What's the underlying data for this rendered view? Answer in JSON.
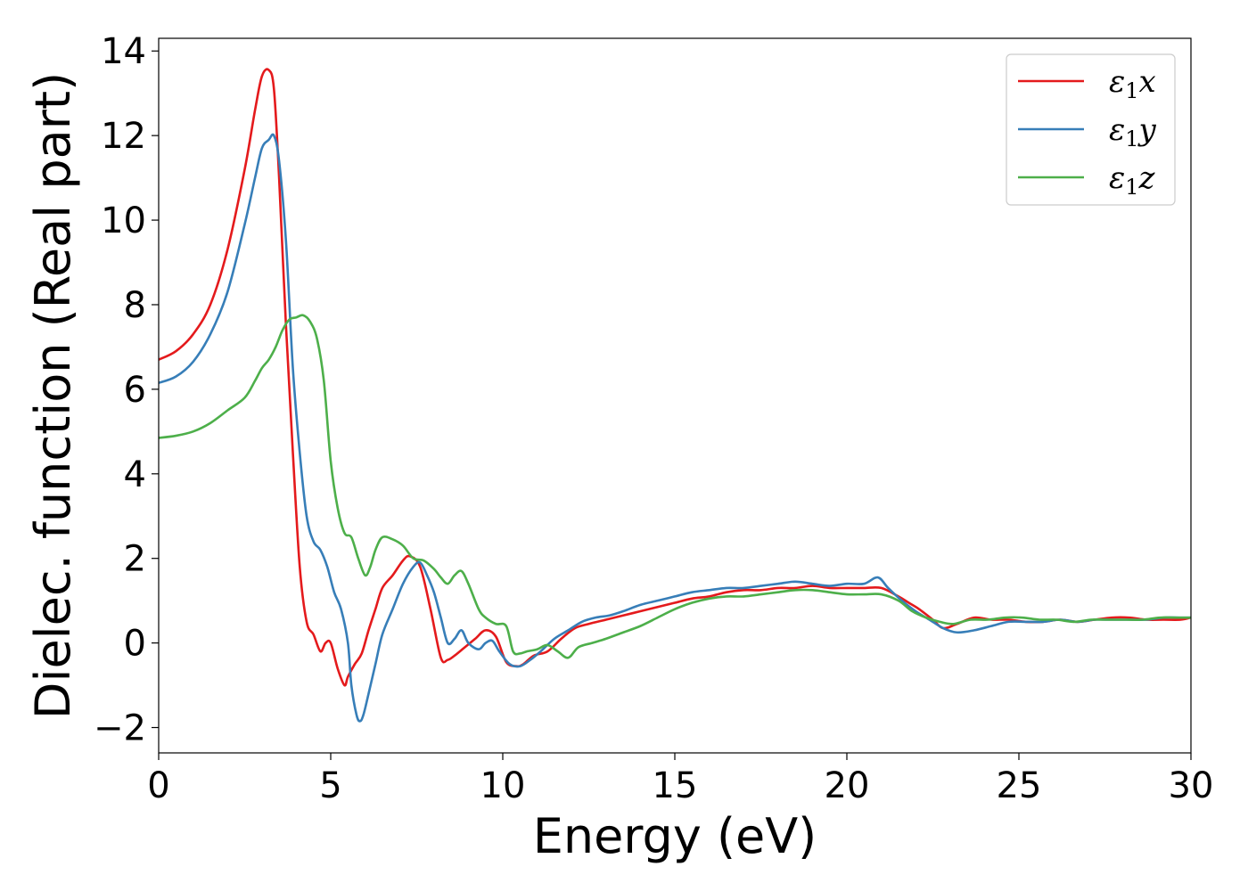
{
  "chart_data": {
    "type": "line",
    "xlabel": "Energy (eV)",
    "ylabel": "Dielec. function (Real part)",
    "xlim": [
      0,
      30
    ],
    "ylim": [
      -2.6,
      14.3
    ],
    "xticks": [
      0,
      5,
      10,
      15,
      20,
      25,
      30
    ],
    "yticks": [
      -2,
      0,
      2,
      4,
      6,
      8,
      10,
      12,
      14
    ],
    "xtick_labels": [
      "0",
      "5",
      "10",
      "15",
      "20",
      "25",
      "30"
    ],
    "ytick_labels": [
      "−2",
      "0",
      "2",
      "4",
      "6",
      "8",
      "10",
      "12",
      "14"
    ],
    "grid": false,
    "legend_position": "top-right",
    "series": [
      {
        "name": "ε1x",
        "legend": {
          "symbol": "ε",
          "sub": "1",
          "var": "x"
        },
        "color": "#e41a1c",
        "x": [
          0,
          0.5,
          1,
          1.5,
          2,
          2.5,
          2.8,
          3.0,
          3.2,
          3.35,
          3.5,
          3.7,
          3.9,
          4.1,
          4.3,
          4.5,
          4.7,
          4.85,
          5.0,
          5.2,
          5.4,
          5.5,
          5.7,
          5.9,
          6.1,
          6.3,
          6.5,
          6.8,
          7.1,
          7.3,
          7.6,
          7.9,
          8.2,
          8.4,
          8.6,
          8.9,
          9.2,
          9.5,
          9.8,
          10.1,
          10.4,
          10.6,
          10.9,
          11.3,
          11.7,
          12.1,
          12.5,
          13.0,
          13.5,
          14.0,
          14.5,
          15.0,
          15.5,
          16.0,
          16.5,
          17.0,
          17.5,
          18.0,
          18.5,
          19.0,
          19.5,
          20.0,
          20.5,
          21.0,
          21.5,
          21.8,
          22.1,
          22.5,
          22.8,
          23.2,
          23.7,
          24.2,
          24.7,
          25.2,
          25.7,
          26.2,
          26.7,
          27.2,
          27.7,
          28.2,
          28.7,
          29.2,
          29.7,
          30.0
        ],
        "values": [
          6.7,
          6.9,
          7.3,
          8.0,
          9.3,
          11.2,
          12.6,
          13.4,
          13.55,
          13.1,
          11.0,
          7.5,
          4.5,
          1.8,
          0.5,
          0.2,
          -0.2,
          0.0,
          0.0,
          -0.6,
          -1.0,
          -0.8,
          -0.5,
          -0.25,
          0.3,
          0.8,
          1.3,
          1.6,
          1.95,
          2.05,
          1.8,
          0.8,
          -0.35,
          -0.4,
          -0.3,
          -0.1,
          0.1,
          0.3,
          0.15,
          -0.45,
          -0.55,
          -0.5,
          -0.3,
          -0.2,
          0.1,
          0.35,
          0.45,
          0.55,
          0.65,
          0.75,
          0.85,
          0.95,
          1.05,
          1.1,
          1.2,
          1.25,
          1.25,
          1.3,
          1.3,
          1.35,
          1.3,
          1.3,
          1.3,
          1.3,
          1.1,
          0.95,
          0.8,
          0.55,
          0.35,
          0.45,
          0.6,
          0.55,
          0.55,
          0.5,
          0.5,
          0.55,
          0.5,
          0.55,
          0.6,
          0.6,
          0.55,
          0.55,
          0.55,
          0.6
        ]
      },
      {
        "name": "ε1y",
        "legend": {
          "symbol": "ε",
          "sub": "1",
          "var": "y"
        },
        "color": "#377eb8",
        "x": [
          0,
          0.5,
          1,
          1.5,
          2,
          2.5,
          2.8,
          3.0,
          3.2,
          3.35,
          3.5,
          3.7,
          3.9,
          4.1,
          4.3,
          4.5,
          4.7,
          4.9,
          5.1,
          5.3,
          5.5,
          5.6,
          5.75,
          5.85,
          5.95,
          6.1,
          6.3,
          6.5,
          6.8,
          7.1,
          7.4,
          7.6,
          7.8,
          8.0,
          8.2,
          8.4,
          8.6,
          8.8,
          9.0,
          9.3,
          9.5,
          9.7,
          9.9,
          10.2,
          10.5,
          10.8,
          11.1,
          11.5,
          11.9,
          12.3,
          12.7,
          13.1,
          13.5,
          14.0,
          14.5,
          15.0,
          15.5,
          16.0,
          16.5,
          17.0,
          17.5,
          18.0,
          18.5,
          19.0,
          19.5,
          20.0,
          20.5,
          20.9,
          21.2,
          21.6,
          22.0,
          22.4,
          22.8,
          23.2,
          23.7,
          24.2,
          24.7,
          25.2,
          25.7,
          26.2,
          26.7,
          27.2,
          27.7,
          28.2,
          28.7,
          29.2,
          29.7,
          30.0
        ],
        "values": [
          6.15,
          6.3,
          6.65,
          7.3,
          8.3,
          9.9,
          11.0,
          11.7,
          11.9,
          12.0,
          11.4,
          9.5,
          6.5,
          4.5,
          3.0,
          2.4,
          2.2,
          1.8,
          1.2,
          0.8,
          0.0,
          -1.0,
          -1.7,
          -1.85,
          -1.7,
          -1.2,
          -0.5,
          0.2,
          0.8,
          1.4,
          1.8,
          1.9,
          1.6,
          1.2,
          0.6,
          0.0,
          0.1,
          0.3,
          0.0,
          -0.15,
          0.0,
          0.05,
          -0.2,
          -0.5,
          -0.55,
          -0.4,
          -0.2,
          0.1,
          0.3,
          0.5,
          0.6,
          0.65,
          0.75,
          0.9,
          1.0,
          1.1,
          1.2,
          1.25,
          1.3,
          1.3,
          1.35,
          1.4,
          1.45,
          1.4,
          1.35,
          1.4,
          1.4,
          1.55,
          1.3,
          1.0,
          0.75,
          0.55,
          0.35,
          0.25,
          0.3,
          0.4,
          0.5,
          0.5,
          0.5,
          0.55,
          0.5,
          0.55,
          0.55,
          0.55,
          0.55,
          0.6,
          0.6,
          0.6
        ]
      },
      {
        "name": "ε1z",
        "legend": {
          "symbol": "ε",
          "sub": "1",
          "var": "z"
        },
        "color": "#4daf4a",
        "x": [
          0,
          0.5,
          1,
          1.5,
          2,
          2.5,
          2.8,
          3.0,
          3.2,
          3.4,
          3.6,
          3.8,
          4.0,
          4.2,
          4.4,
          4.6,
          4.8,
          5.0,
          5.2,
          5.4,
          5.6,
          5.8,
          6.0,
          6.15,
          6.3,
          6.5,
          6.8,
          7.1,
          7.4,
          7.7,
          8.0,
          8.2,
          8.4,
          8.6,
          8.8,
          9.0,
          9.3,
          9.5,
          9.8,
          10.1,
          10.3,
          10.5,
          10.7,
          11.0,
          11.3,
          11.6,
          11.9,
          12.2,
          12.6,
          13.0,
          13.5,
          14.0,
          14.5,
          15.0,
          15.5,
          16.0,
          16.5,
          17.0,
          17.5,
          18.0,
          18.5,
          19.0,
          19.5,
          20.0,
          20.5,
          21.0,
          21.5,
          21.9,
          22.3,
          22.7,
          23.1,
          23.6,
          24.1,
          24.6,
          25.1,
          25.6,
          26.1,
          26.6,
          27.1,
          27.6,
          28.1,
          28.6,
          29.1,
          29.6,
          30.0
        ],
        "values": [
          4.85,
          4.9,
          5.0,
          5.2,
          5.5,
          5.8,
          6.2,
          6.5,
          6.7,
          7.0,
          7.4,
          7.65,
          7.7,
          7.75,
          7.6,
          7.2,
          6.2,
          4.3,
          3.2,
          2.6,
          2.5,
          2.0,
          1.6,
          1.8,
          2.2,
          2.5,
          2.45,
          2.3,
          2.0,
          1.95,
          1.75,
          1.55,
          1.4,
          1.6,
          1.7,
          1.4,
          0.8,
          0.6,
          0.45,
          0.4,
          -0.2,
          -0.25,
          -0.2,
          -0.15,
          -0.05,
          -0.2,
          -0.35,
          -0.1,
          0.0,
          0.1,
          0.25,
          0.4,
          0.6,
          0.8,
          0.95,
          1.05,
          1.1,
          1.1,
          1.15,
          1.2,
          1.25,
          1.25,
          1.2,
          1.15,
          1.15,
          1.15,
          1.0,
          0.75,
          0.6,
          0.5,
          0.45,
          0.55,
          0.55,
          0.6,
          0.6,
          0.55,
          0.55,
          0.5,
          0.55,
          0.55,
          0.55,
          0.55,
          0.6,
          0.6,
          0.6
        ]
      }
    ]
  }
}
